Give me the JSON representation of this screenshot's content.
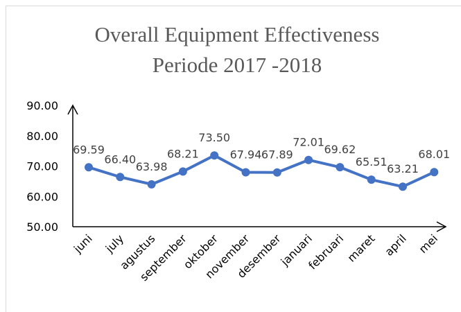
{
  "chart_data": {
    "type": "line",
    "title": [
      "Overall Equipment Effectiveness",
      "Periode 2017 -2018"
    ],
    "categories": [
      "juni",
      "july",
      "agustus",
      "september",
      "oktober",
      "november",
      "desember",
      "januari",
      "februari",
      "maret",
      "april",
      "mei"
    ],
    "values": [
      69.59,
      66.4,
      63.98,
      68.21,
      73.5,
      67.94,
      67.89,
      72.01,
      69.62,
      65.51,
      63.21,
      68.01
    ],
    "value_labels": [
      "69.59",
      "66.40",
      "63.98",
      "68.21",
      "73.50",
      "67.94",
      "67.89",
      "72.01",
      "69.62",
      "65.51",
      "63.21",
      "68.01"
    ],
    "color": "#4472c4",
    "ylim": [
      50,
      90
    ],
    "yticks": [
      {
        "value": 50,
        "label": "50.00"
      },
      {
        "value": 60,
        "label": "60.00"
      },
      {
        "value": 70,
        "label": "70.00"
      },
      {
        "value": 80,
        "label": "80.00"
      },
      {
        "value": 90,
        "label": "90.00"
      }
    ]
  }
}
